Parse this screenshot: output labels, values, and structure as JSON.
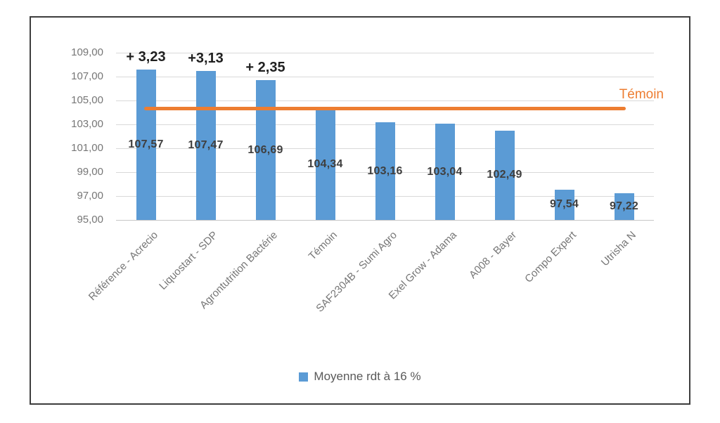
{
  "chart_data": {
    "type": "bar",
    "title": "",
    "categories": [
      "Référence - Acrecio",
      "Liquostart - SDP",
      "Agrontutrition Bactérie",
      "Témoin",
      "SAF2304B - Sumi Agro",
      "Exel Grow - Adama",
      "A008 - Bayer",
      "Compo Expert",
      "Utrisha N"
    ],
    "series": [
      {
        "name": "Moyenne rdt à 16 %",
        "values": [
          107.57,
          107.47,
          106.69,
          104.34,
          103.16,
          103.04,
          102.49,
          97.54,
          97.22
        ]
      }
    ],
    "value_labels": [
      "107,57",
      "107,47",
      "106,69",
      "104,34",
      "103,16",
      "103,04",
      "102,49",
      "97,54",
      "97,22"
    ],
    "annotations": [
      {
        "category_index": 0,
        "text": "+ 3,23"
      },
      {
        "category_index": 1,
        "text": "+3,13"
      },
      {
        "category_index": 2,
        "text": "+ 2,35"
      }
    ],
    "y_axis": {
      "min": 95,
      "max": 109,
      "tick_values": [
        109,
        107,
        105,
        103,
        101,
        99,
        97,
        95
      ],
      "tick_labels": [
        "109,00",
        "107,00",
        "105,00",
        "103,00",
        "101,00",
        "99,00",
        "97,00",
        "95,00"
      ]
    },
    "reference_line": {
      "label": "Témoin",
      "value": 104.34
    },
    "legend": {
      "label": "Moyenne rdt à 16 %",
      "position": "bottom"
    },
    "grid": true,
    "colors": {
      "bar": "#5B9BD5",
      "reference_line": "#ED7D31",
      "reference_label": "#ED7D31",
      "value_label": "#3F3F3F",
      "annotation": "#1F1F1F",
      "axis_text": "#767676",
      "gridline": "#D9D9D9",
      "baseline": "#C6C6C6",
      "frame_border": "#3D3D3D",
      "legend_text": "#595959"
    }
  }
}
